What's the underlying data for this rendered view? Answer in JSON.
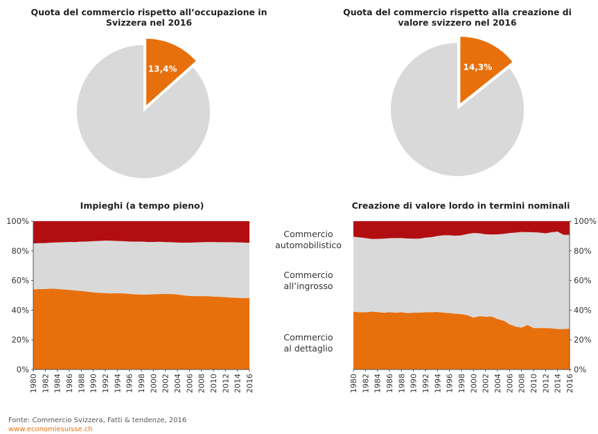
{
  "colors": {
    "retail": "#e8700c",
    "wholesale": "#d9d9d9",
    "automotive": "#b20e12",
    "text": "#333333"
  },
  "legend": {
    "automotive": [
      "Commercio",
      "automobilistico"
    ],
    "wholesale": [
      "Commercio",
      "all’ingrosso"
    ],
    "retail": [
      "Commercio",
      "al dettaglio"
    ]
  },
  "footer": {
    "source": "Fonte: Commercio Svizzera, Fatti & tendenze, 2016",
    "url": "www.economiesuisse.ch"
  },
  "chart_data": [
    {
      "type": "pie",
      "title": "Quota del commercio rispetto all’occupazione in Svizzera nel 2016",
      "slices": [
        {
          "label": "13,4%",
          "value": 13.4,
          "color": "#e8700c",
          "exploded": true
        },
        {
          "label": "",
          "value": 86.6,
          "color": "#d9d9d9"
        }
      ]
    },
    {
      "type": "pie",
      "title": "Quota del commercio rispetto alla creazione di valore svizzero nel 2016",
      "slices": [
        {
          "label": "14,3%",
          "value": 14.3,
          "color": "#e8700c",
          "exploded": true
        },
        {
          "label": "",
          "value": 85.7,
          "color": "#d9d9d9"
        }
      ]
    },
    {
      "type": "area",
      "stacked": "percent",
      "title": "Impieghi (a tempo pieno)",
      "x": [
        1980,
        1981,
        1982,
        1983,
        1984,
        1985,
        1986,
        1987,
        1988,
        1989,
        1990,
        1991,
        1992,
        1993,
        1994,
        1995,
        1996,
        1997,
        1998,
        1999,
        2000,
        2001,
        2002,
        2003,
        2004,
        2005,
        2006,
        2007,
        2008,
        2009,
        2010,
        2011,
        2012,
        2013,
        2014,
        2015,
        2016
      ],
      "xticks": [
        "1980",
        "1982",
        "1984",
        "1986",
        "1988",
        "1990",
        "1992",
        "1994",
        "1996",
        "1998",
        "2000",
        "2002",
        "2004",
        "2006",
        "2008",
        "2010",
        "2012",
        "2014",
        "2016"
      ],
      "yticks": [
        "0%",
        "20%",
        "40%",
        "60%",
        "80%",
        "100%"
      ],
      "ylim": [
        0,
        100
      ],
      "yaxis_side": "left",
      "series": [
        {
          "key": "retail",
          "values": [
            54,
            54.2,
            54.3,
            54.5,
            54.3,
            54,
            53.7,
            53.3,
            53,
            52.5,
            52,
            51.7,
            51.5,
            51.3,
            51.5,
            51.3,
            51,
            50.7,
            50.5,
            50.5,
            50.7,
            50.9,
            51,
            50.9,
            50.6,
            50,
            49.6,
            49.5,
            49.5,
            49.5,
            49.2,
            49,
            48.8,
            48.5,
            48.3,
            48.2,
            48.2
          ]
        },
        {
          "key": "wholesale",
          "values": [
            31,
            31,
            30.9,
            31,
            31.4,
            31.8,
            32.3,
            32.6,
            33.2,
            33.8,
            34.5,
            35,
            35.4,
            35.5,
            35.1,
            35.2,
            35.3,
            35.5,
            35.7,
            35.5,
            35.3,
            35.2,
            34.9,
            34.9,
            35,
            35.5,
            35.9,
            36.2,
            36.3,
            36.4,
            36.7,
            36.8,
            37,
            37.3,
            37.4,
            37.4,
            37.2
          ]
        },
        {
          "key": "automotive",
          "values": [
            15,
            14.8,
            14.8,
            14.5,
            14.3,
            14.2,
            14,
            14.1,
            13.8,
            13.7,
            13.5,
            13.3,
            13.1,
            13.2,
            13.4,
            13.5,
            13.7,
            13.8,
            13.8,
            14,
            14,
            13.9,
            14.1,
            14.2,
            14.4,
            14.5,
            14.5,
            14.3,
            14.2,
            14.1,
            14.1,
            14.2,
            14.2,
            14.2,
            14.3,
            14.4,
            14.6
          ]
        }
      ]
    },
    {
      "type": "area",
      "stacked": "percent",
      "title": "Creazione di valore lordo in termini nominali",
      "x": [
        1980,
        1981,
        1982,
        1983,
        1984,
        1985,
        1986,
        1987,
        1988,
        1989,
        1990,
        1991,
        1992,
        1993,
        1994,
        1995,
        1996,
        1997,
        1998,
        1999,
        2000,
        2001,
        2002,
        2003,
        2004,
        2005,
        2006,
        2007,
        2008,
        2009,
        2010,
        2011,
        2012,
        2013,
        2014,
        2015,
        2016
      ],
      "xticks": [
        "1980",
        "1982",
        "1984",
        "1986",
        "1988",
        "1990",
        "1992",
        "1994",
        "1996",
        "1998",
        "2000",
        "2002",
        "2004",
        "2006",
        "2008",
        "2010",
        "2012",
        "2014",
        "2016"
      ],
      "yticks": [
        "0%",
        "20%",
        "40%",
        "60%",
        "80%",
        "100%"
      ],
      "ylim": [
        0,
        100
      ],
      "yaxis_side": "right",
      "series": [
        {
          "key": "retail",
          "values": [
            39,
            38.6,
            38.6,
            39,
            38.7,
            38.3,
            38.6,
            38.3,
            38.6,
            38,
            38.3,
            38.3,
            38.6,
            38.6,
            38.8,
            38.3,
            38.1,
            37.6,
            37.3,
            36.6,
            35,
            36,
            35.6,
            35.8,
            34,
            33,
            30.5,
            29,
            28.3,
            30,
            28,
            28,
            28,
            27.8,
            27.3,
            27.3,
            27.6
          ]
        },
        {
          "key": "wholesale",
          "values": [
            50.5,
            50.5,
            50,
            49,
            49.3,
            49.9,
            49.9,
            50.3,
            50,
            50.3,
            49.9,
            49.9,
            50.3,
            50.6,
            51.2,
            52.2,
            52.4,
            52.6,
            53.2,
            54.8,
            57,
            55.8,
            55.6,
            55.2,
            57.1,
            58.4,
            61.5,
            63.3,
            64.4,
            62.6,
            64.5,
            64.3,
            63.8,
            64.7,
            65.7,
            63.5,
            63.2
          ]
        },
        {
          "key": "automotive",
          "values": [
            10.5,
            10.9,
            11.4,
            12,
            12,
            11.8,
            11.5,
            11.4,
            11.4,
            11.7,
            11.8,
            11.8,
            11.1,
            10.8,
            10,
            9.5,
            9.5,
            9.8,
            9.5,
            8.6,
            8,
            8.2,
            8.8,
            9,
            8.9,
            8.6,
            8,
            7.7,
            7.3,
            7.4,
            7.5,
            7.7,
            8.2,
            7.5,
            7,
            9.2,
            9.2
          ]
        }
      ]
    }
  ]
}
